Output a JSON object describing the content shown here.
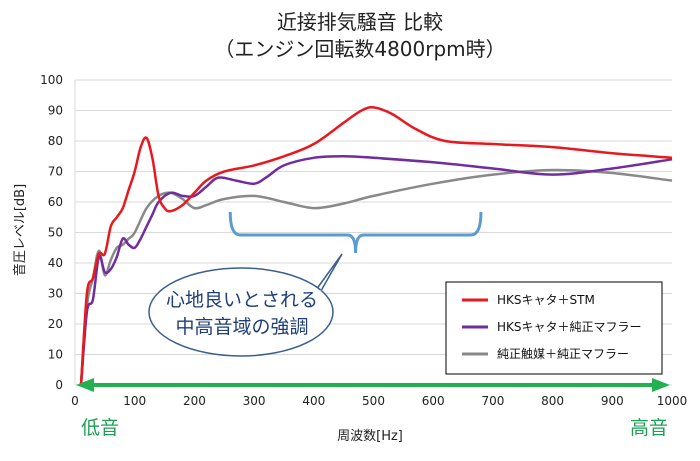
{
  "chart_data": {
    "type": "line",
    "title": "近接排気騒音 比較",
    "subtitle": "（エンジン回転数4800rpm時）",
    "xlabel": "周波数[Hz]",
    "ylabel": "音圧レベル[dB]",
    "xlim": [
      0,
      1000
    ],
    "ylim": [
      0,
      100
    ],
    "xticks": [
      "0",
      "100",
      "200",
      "300",
      "400",
      "500",
      "600",
      "700",
      "800",
      "900",
      "1000"
    ],
    "yticks": [
      "0",
      "10",
      "20",
      "30",
      "40",
      "50",
      "60",
      "70",
      "80",
      "90",
      "100"
    ],
    "grid": "horizontal",
    "legend_position": "bottom-right",
    "series": [
      {
        "name": "HKSキャタ＋STM",
        "color": "#e8191e",
        "points": [
          [
            10,
            0
          ],
          [
            20,
            30
          ],
          [
            30,
            35
          ],
          [
            40,
            43
          ],
          [
            50,
            43
          ],
          [
            60,
            52
          ],
          [
            70,
            55
          ],
          [
            80,
            58
          ],
          [
            90,
            64
          ],
          [
            100,
            70
          ],
          [
            110,
            78
          ],
          [
            120,
            81
          ],
          [
            130,
            74
          ],
          [
            140,
            62
          ],
          [
            150,
            58
          ],
          [
            160,
            57
          ],
          [
            180,
            59
          ],
          [
            200,
            63
          ],
          [
            220,
            67
          ],
          [
            250,
            70
          ],
          [
            300,
            72
          ],
          [
            350,
            75
          ],
          [
            400,
            79
          ],
          [
            450,
            86
          ],
          [
            480,
            90
          ],
          [
            500,
            91
          ],
          [
            530,
            89
          ],
          [
            570,
            84
          ],
          [
            620,
            80
          ],
          [
            700,
            79
          ],
          [
            800,
            78
          ],
          [
            900,
            76
          ],
          [
            1000,
            74.5
          ]
        ]
      },
      {
        "name": "HKSキャタ＋純正マフラー",
        "color": "#6f2d9e",
        "points": [
          [
            10,
            0
          ],
          [
            20,
            24
          ],
          [
            30,
            28
          ],
          [
            40,
            42
          ],
          [
            50,
            37
          ],
          [
            60,
            38
          ],
          [
            70,
            42
          ],
          [
            80,
            48
          ],
          [
            90,
            46
          ],
          [
            100,
            45
          ],
          [
            110,
            48
          ],
          [
            120,
            52
          ],
          [
            130,
            56
          ],
          [
            140,
            60
          ],
          [
            160,
            63
          ],
          [
            180,
            62
          ],
          [
            200,
            62
          ],
          [
            220,
            65
          ],
          [
            240,
            68
          ],
          [
            270,
            67
          ],
          [
            300,
            66
          ],
          [
            320,
            68
          ],
          [
            350,
            72
          ],
          [
            400,
            74.5
          ],
          [
            450,
            75
          ],
          [
            500,
            74.5
          ],
          [
            600,
            73
          ],
          [
            700,
            71
          ],
          [
            800,
            69
          ],
          [
            900,
            71
          ],
          [
            1000,
            74
          ]
        ]
      },
      {
        "name": "純正触媒＋純正マフラー",
        "color": "#898989",
        "points": [
          [
            10,
            0
          ],
          [
            20,
            26
          ],
          [
            30,
            35
          ],
          [
            40,
            44
          ],
          [
            50,
            36
          ],
          [
            60,
            41
          ],
          [
            70,
            45
          ],
          [
            80,
            46
          ],
          [
            90,
            48
          ],
          [
            100,
            50
          ],
          [
            120,
            58
          ],
          [
            140,
            62
          ],
          [
            160,
            63
          ],
          [
            180,
            61
          ],
          [
            200,
            58
          ],
          [
            220,
            59
          ],
          [
            250,
            61
          ],
          [
            300,
            62
          ],
          [
            350,
            60
          ],
          [
            400,
            58
          ],
          [
            450,
            59.5
          ],
          [
            500,
            62
          ],
          [
            600,
            66
          ],
          [
            700,
            69
          ],
          [
            800,
            70.5
          ],
          [
            900,
            69.5
          ],
          [
            1000,
            67
          ]
        ]
      }
    ],
    "annotation": {
      "lines": [
        "心地良いとされる",
        "中高音域の強調"
      ],
      "bracket_range": [
        260,
        680
      ]
    },
    "axis_endpoints": {
      "low_label": "低音",
      "high_label": "高音"
    }
  },
  "colors": {
    "bracket": "#5b9bd5",
    "callout_border": "#3a5f8f",
    "callout_fill": "#ffffff",
    "arrow": "#22b050",
    "gridline": "#d9d9d9"
  }
}
